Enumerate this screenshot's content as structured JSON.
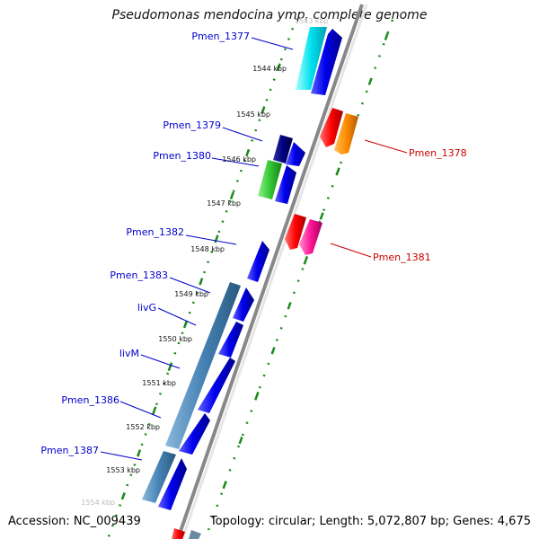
{
  "title": "Pseudomonas mendocina ymp, complete genome",
  "footer": {
    "accession": "Accession: NC_009439",
    "summary": "Topology: circular; Length: 5,072,807 bp; Genes: 4,675"
  },
  "colors": {
    "backbone": "#888888",
    "tick": "#1a8a1a",
    "left_label": "#0000cc",
    "right_label": "#cc0000"
  },
  "scale_labels": [
    "1544 kbp",
    "1545 kbp",
    "1546 kbp",
    "1547 kbp",
    "1548 kbp",
    "1549 kbp",
    "1550 kbp",
    "1551 kbp",
    "1552 kbp",
    "1553 kbp"
  ],
  "left_labels": [
    "Pmen_1377",
    "Pmen_1379",
    "Pmen_1380",
    "Pmen_1382",
    "Pmen_1383",
    "livG",
    "livM",
    "Pmen_1386",
    "Pmen_1387"
  ],
  "right_labels": [
    "Pmen_1378",
    "Pmen_1381"
  ]
}
